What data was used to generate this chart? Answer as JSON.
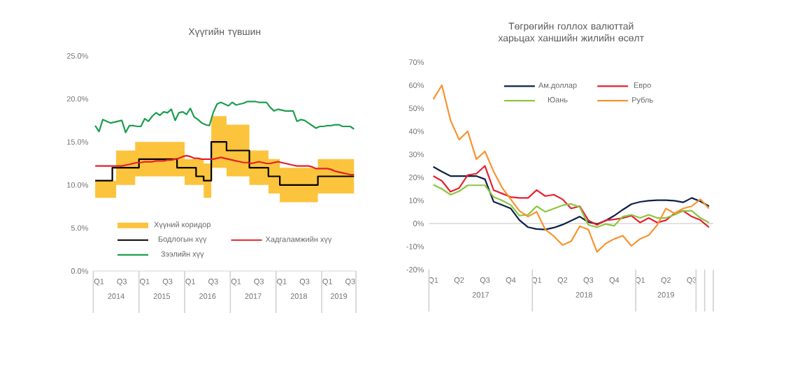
{
  "chart_data": [
    {
      "type": "line",
      "title": "Хүүгийн түвшин",
      "categories": [
        null,
        "Q1",
        null,
        null,
        null,
        null,
        null,
        "Q3",
        null,
        null,
        null,
        null,
        null,
        "Q1",
        null,
        null,
        null,
        null,
        null,
        "Q3",
        null,
        null,
        null,
        null,
        null,
        "Q1",
        null,
        null,
        null,
        null,
        null,
        "Q3",
        null,
        null,
        null,
        null,
        null,
        "Q1",
        null,
        null,
        null,
        null,
        null,
        "Q3",
        null,
        null,
        null,
        null,
        null,
        "Q1",
        null,
        null,
        null,
        null,
        null,
        "Q3",
        null,
        null,
        null,
        null,
        null,
        "Q1",
        null,
        null,
        null,
        null,
        null,
        "Q3",
        null
      ],
      "annotations": [
        "2014",
        "2015",
        "2016",
        "2017",
        "2018",
        "2019"
      ],
      "ylim": [
        0,
        25
      ],
      "yticks": [
        {
          "value": 0,
          "label": "0.0%"
        },
        {
          "value": 5,
          "label": "5.0%"
        },
        {
          "value": 10,
          "label": "10.0%"
        },
        {
          "value": 15,
          "label": "15.0%"
        },
        {
          "value": 20,
          "label": "20.0%"
        },
        {
          "value": 25,
          "label": "25.0%"
        }
      ],
      "legend": "bottom",
      "series": [
        {
          "name": "Хүүний коридор",
          "type": "step",
          "color": "#fcc43c",
          "values": [
            null,
            null,
            null,
            null,
            null,
            null,
            null,
            null,
            null,
            null,
            null,
            null,
            null,
            null,
            null,
            null,
            null,
            null,
            null,
            null,
            null,
            null,
            null,
            null,
            null,
            null,
            null,
            null,
            null,
            null,
            null,
            null,
            null,
            null,
            null,
            null,
            null,
            null,
            null,
            null,
            null,
            null,
            null,
            null,
            null,
            null,
            null,
            null,
            null,
            null,
            null,
            null,
            null,
            null,
            null,
            null,
            null,
            null,
            null,
            null,
            null,
            null,
            null,
            null,
            null,
            null,
            null,
            null,
            null
          ],
          "lower": [
            8.5,
            8.5,
            8.5,
            8.5,
            8.5,
            8.5,
            10,
            10,
            10,
            10,
            10,
            11,
            11,
            11,
            11,
            11,
            11,
            11,
            11,
            11,
            11,
            11,
            11,
            11,
            10,
            10,
            10,
            10,
            10,
            8.5,
            8.5,
            12,
            12,
            12,
            12,
            11,
            11,
            11,
            11,
            11,
            11,
            10,
            10,
            10,
            10,
            10,
            9,
            9,
            9,
            8,
            8,
            8,
            8,
            8,
            8,
            8,
            8,
            8,
            8,
            9,
            9,
            9,
            9,
            9,
            9,
            9,
            9,
            9,
            9
          ],
          "upper": [
            10.5,
            10.5,
            10.5,
            10.5,
            10.5,
            10.5,
            14,
            14,
            14,
            14,
            14,
            15,
            15,
            15,
            15,
            15,
            15,
            15,
            15,
            15,
            15,
            15,
            15,
            15,
            13,
            13,
            13,
            13,
            13,
            12.5,
            12.5,
            18,
            18,
            18,
            18,
            17,
            17,
            17,
            17,
            17,
            17,
            14,
            14,
            14,
            14,
            14,
            13,
            13,
            13,
            12,
            12,
            12,
            12,
            12,
            12,
            12,
            12,
            12,
            12,
            13,
            13,
            13,
            13,
            13,
            13,
            13,
            13,
            13,
            13
          ]
        },
        {
          "name": "Бодлогын хүү",
          "type": "step",
          "color": "#000000",
          "values": [
            10.5,
            10.5,
            10.5,
            10.5,
            10.5,
            12,
            12,
            12,
            12,
            12,
            12,
            12,
            13,
            13,
            13,
            13,
            13,
            13,
            13,
            13,
            13,
            13,
            12,
            12,
            12,
            12,
            12,
            11,
            11,
            10.5,
            10.5,
            15,
            15,
            15,
            15,
            14,
            14,
            14,
            14,
            14,
            14,
            12,
            12,
            12,
            12,
            12,
            11,
            11,
            11,
            10,
            10,
            10,
            10,
            10,
            10,
            10,
            10,
            10,
            10,
            11,
            11,
            11,
            11,
            11,
            11,
            11,
            11,
            11,
            11
          ]
        },
        {
          "name": "Хадгаламжийн хүү",
          "color": "#e3202a",
          "values": [
            12.2,
            12.2,
            12.2,
            12.2,
            12.2,
            12.2,
            12.2,
            12.2,
            12.3,
            12.4,
            12.5,
            12.6,
            12.6,
            12.7,
            12.7,
            12.7,
            12.8,
            12.8,
            12.8,
            12.9,
            12.9,
            13.0,
            13.1,
            13.3,
            13.4,
            13.3,
            13.1,
            13.1,
            13.0,
            13.0,
            13.0,
            13.0,
            13.1,
            13.2,
            13.1,
            13.0,
            12.9,
            12.8,
            12.7,
            12.6,
            12.6,
            12.5,
            12.6,
            12.7,
            12.6,
            12.5,
            12.5,
            12.6,
            12.7,
            12.6,
            12.5,
            12.4,
            12.3,
            12.2,
            12.2,
            12.2,
            12.2,
            12.1,
            11.9,
            11.9,
            11.9,
            11.9,
            11.8,
            11.6,
            11.5,
            11.4,
            11.3,
            11.2,
            11.2
          ]
        },
        {
          "name": "Зээлийн хүү",
          "color": "#1e9e4f",
          "values": [
            16.9,
            16.2,
            17.6,
            17.4,
            17.2,
            17.3,
            17.4,
            17.5,
            16.1,
            16.9,
            16.9,
            16.8,
            16.8,
            17.7,
            17.4,
            18.0,
            18.4,
            18.1,
            18.5,
            18.4,
            18.8,
            17.5,
            18.4,
            18.5,
            18.2,
            18.9,
            17.9,
            17.6,
            17.2,
            17.0,
            16.9,
            18.4,
            19.4,
            19.6,
            19.4,
            19.2,
            19.6,
            19.3,
            19.4,
            19.5,
            19.7,
            19.7,
            19.7,
            19.6,
            19.6,
            19.6,
            19.0,
            18.6,
            18.8,
            18.7,
            18.6,
            18.6,
            18.6,
            17.4,
            17.6,
            17.5,
            17.2,
            16.9,
            16.6,
            16.8,
            16.8,
            16.9,
            16.9,
            17.0,
            17.0,
            16.8,
            16.8,
            16.8,
            16.5
          ]
        }
      ]
    },
    {
      "type": "line",
      "title": "Төгрөгийн голлох валюттай харьцах ханшийн жилийн өсөлт",
      "categories": [
        "Q1",
        null,
        null,
        "Q2",
        null,
        null,
        "Q3",
        null,
        null,
        "Q4",
        null,
        null,
        "Q1",
        null,
        null,
        "Q2",
        null,
        null,
        "Q3",
        null,
        null,
        "Q4",
        null,
        null,
        "Q1",
        null,
        null,
        "Q2",
        null,
        null,
        "Q3",
        null,
        null
      ],
      "annotations": [
        "2017",
        "2018",
        "2019"
      ],
      "ylim": [
        -20,
        70
      ],
      "yticks": [
        {
          "value": -20,
          "label": "-20%"
        },
        {
          "value": -10,
          "label": "-10%"
        },
        {
          "value": 0,
          "label": "0%"
        },
        {
          "value": 10,
          "label": "10%"
        },
        {
          "value": 20,
          "label": "20%"
        },
        {
          "value": 30,
          "label": "30%"
        },
        {
          "value": 40,
          "label": "40%"
        },
        {
          "value": 50,
          "label": "50%"
        },
        {
          "value": 60,
          "label": "60%"
        },
        {
          "value": 70,
          "label": "70%"
        }
      ],
      "ref_lines": [
        {
          "axis": "y",
          "value": 0,
          "color": "#d9d9d9"
        }
      ],
      "legend": "top",
      "series": [
        {
          "name": "Ам.доллар",
          "color": "#0d2147",
          "values": [
            24.6,
            22.5,
            20.6,
            20.6,
            20.6,
            20.6,
            19.2,
            9.5,
            8.0,
            6.5,
            1.5,
            -1.6,
            -2.4,
            -2.6,
            -1.8,
            -0.5,
            1.2,
            3.0,
            0.6,
            -0.2,
            1.2,
            3.4,
            6.0,
            8.4,
            9.4,
            9.9,
            10.1,
            10.1,
            9.9,
            9.2,
            11.1,
            9.6,
            7.5
          ]
        },
        {
          "name": "Евро",
          "color": "#e8212e",
          "values": [
            20.6,
            18.5,
            13.8,
            15.4,
            21.0,
            21.6,
            25.0,
            14.5,
            13.0,
            11.5,
            11.1,
            11.1,
            14.5,
            11.9,
            12.5,
            10.5,
            6.5,
            7.5,
            1.4,
            -0.6,
            1.4,
            1.8,
            2.4,
            3.4,
            0.4,
            2.4,
            0.4,
            1.4,
            4.4,
            5.5,
            3.0,
            1.5,
            -1.6
          ]
        },
        {
          "name": "Юань",
          "color": "#8cc63f",
          "values": [
            16.8,
            15.0,
            12.5,
            14.0,
            16.6,
            16.6,
            16.6,
            11.5,
            10.0,
            8.0,
            3.4,
            3.8,
            7.5,
            5.1,
            6.5,
            7.9,
            8.5,
            7.1,
            -0.6,
            -1.6,
            -0.2,
            -1.0,
            3.0,
            3.8,
            2.4,
            3.8,
            2.4,
            2.4,
            3.8,
            5.5,
            5.5,
            2.4,
            0.4
          ]
        },
        {
          "name": "Рубль",
          "color": "#f7932f",
          "values": [
            53.9,
            60.0,
            44.8,
            36.4,
            40.0,
            27.9,
            31.3,
            22.6,
            15.5,
            10.5,
            5.5,
            3.0,
            5.1,
            -2.6,
            -5.5,
            -9.3,
            -7.7,
            -1.2,
            -2.6,
            -12.3,
            -8.7,
            -6.7,
            -5.3,
            -9.7,
            -6.7,
            -5.1,
            -0.6,
            6.5,
            4.4,
            6.5,
            7.5,
            10.5,
            6.5
          ]
        }
      ]
    }
  ]
}
